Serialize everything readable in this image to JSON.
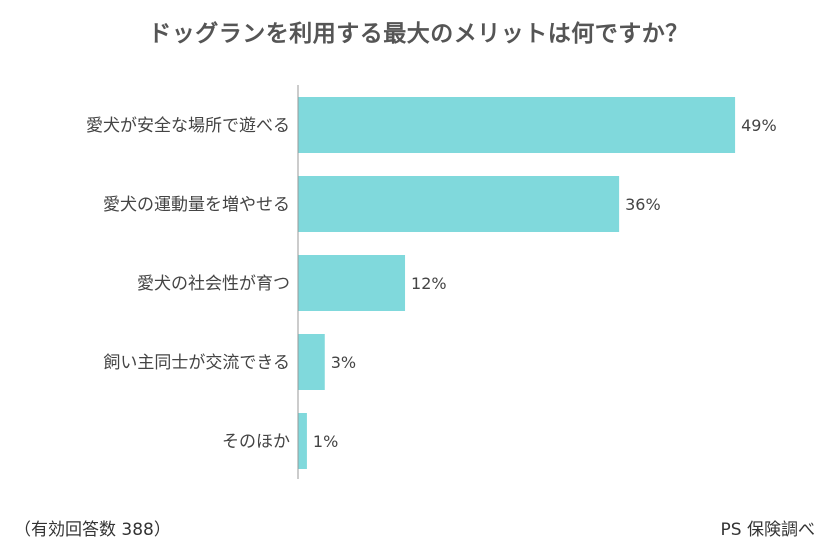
{
  "chart_data": {
    "type": "bar",
    "orientation": "horizontal",
    "title": "ドッグランを利用する最大のメリットは何ですか？",
    "categories": [
      "愛犬が安全な場所で遊べる",
      "愛犬の運動量を増やせる",
      "愛犬の社会性が育つ",
      "飼い主同士が交流できる",
      "そのほか"
    ],
    "values": [
      49,
      36,
      12,
      3,
      1
    ],
    "value_labels": [
      "49%",
      "36%",
      "12%",
      "3%",
      "1%"
    ],
    "unit": "%",
    "xlim": [
      0,
      50
    ],
    "grid": false,
    "bar_color": "#80d9dc"
  },
  "footer": {
    "note": "（有効回答数 388）",
    "source": "PS 保険調べ"
  }
}
